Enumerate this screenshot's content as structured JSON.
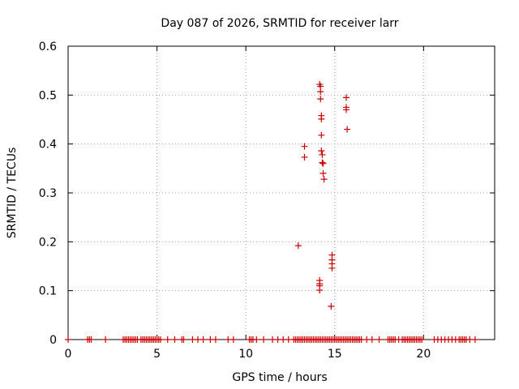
{
  "chart_data": {
    "type": "scatter",
    "title": "Day 087 of 2026, SRMTID for receiver larr",
    "xlabel": "GPS time / hours",
    "ylabel": "SRMTID / TECUs",
    "xlim": [
      0,
      24
    ],
    "ylim": [
      0,
      0.6
    ],
    "x_ticks": [
      0,
      5,
      10,
      15,
      20
    ],
    "y_ticks": [
      0,
      0.1,
      0.2,
      0.3,
      0.4,
      0.5,
      0.6
    ],
    "x_tick_labels": [
      "0",
      "5",
      "10",
      "15",
      "20"
    ],
    "y_tick_labels": [
      "0",
      "0.1",
      "0.2",
      "0.3",
      "0.4",
      "0.5",
      "0.6"
    ],
    "grid": true,
    "marker": "+",
    "marker_color": "#cc0000",
    "series": [
      {
        "name": "larr",
        "points": [
          [
            0.0,
            0.0
          ],
          [
            1.1,
            0.0
          ],
          [
            1.2,
            0.0
          ],
          [
            1.3,
            0.0
          ],
          [
            2.1,
            0.0
          ],
          [
            3.1,
            0.0
          ],
          [
            3.2,
            0.0
          ],
          [
            3.3,
            0.0
          ],
          [
            3.4,
            0.0
          ],
          [
            3.5,
            0.0
          ],
          [
            3.6,
            0.0
          ],
          [
            3.7,
            0.0
          ],
          [
            3.8,
            0.0
          ],
          [
            3.9,
            0.0
          ],
          [
            4.1,
            0.0
          ],
          [
            4.2,
            0.0
          ],
          [
            4.3,
            0.0
          ],
          [
            4.4,
            0.0
          ],
          [
            4.5,
            0.0
          ],
          [
            4.6,
            0.0
          ],
          [
            4.7,
            0.0
          ],
          [
            4.8,
            0.0
          ],
          [
            4.9,
            0.0
          ],
          [
            5.0,
            0.0
          ],
          [
            5.1,
            0.0
          ],
          [
            5.2,
            0.0
          ],
          [
            5.6,
            0.0
          ],
          [
            6.0,
            0.0
          ],
          [
            6.4,
            0.0
          ],
          [
            6.5,
            0.0
          ],
          [
            7.0,
            0.0
          ],
          [
            7.3,
            0.0
          ],
          [
            7.6,
            0.0
          ],
          [
            8.0,
            0.0
          ],
          [
            8.3,
            0.0
          ],
          [
            9.0,
            0.0
          ],
          [
            9.3,
            0.0
          ],
          [
            10.2,
            0.0
          ],
          [
            10.3,
            0.0
          ],
          [
            10.4,
            0.0
          ],
          [
            10.6,
            0.0
          ],
          [
            11.0,
            0.0
          ],
          [
            11.5,
            0.0
          ],
          [
            11.8,
            0.0
          ],
          [
            12.1,
            0.0
          ],
          [
            12.4,
            0.0
          ],
          [
            12.7,
            0.0
          ],
          [
            12.8,
            0.0
          ],
          [
            12.9,
            0.0
          ],
          [
            13.0,
            0.0
          ],
          [
            13.1,
            0.0
          ],
          [
            13.2,
            0.0
          ],
          [
            13.3,
            0.0
          ],
          [
            13.4,
            0.0
          ],
          [
            13.5,
            0.0
          ],
          [
            13.6,
            0.0
          ],
          [
            13.7,
            0.0
          ],
          [
            13.8,
            0.0
          ],
          [
            13.9,
            0.0
          ],
          [
            14.0,
            0.0
          ],
          [
            14.1,
            0.0
          ],
          [
            14.2,
            0.0
          ],
          [
            14.3,
            0.0
          ],
          [
            14.4,
            0.0
          ],
          [
            14.5,
            0.0
          ],
          [
            14.6,
            0.0
          ],
          [
            14.7,
            0.0
          ],
          [
            14.8,
            0.0
          ],
          [
            14.9,
            0.0
          ],
          [
            15.0,
            0.0
          ],
          [
            15.1,
            0.0
          ],
          [
            15.2,
            0.0
          ],
          [
            15.3,
            0.0
          ],
          [
            15.4,
            0.0
          ],
          [
            15.5,
            0.0
          ],
          [
            15.6,
            0.0
          ],
          [
            15.7,
            0.0
          ],
          [
            15.8,
            0.0
          ],
          [
            15.9,
            0.0
          ],
          [
            16.0,
            0.0
          ],
          [
            16.1,
            0.0
          ],
          [
            16.2,
            0.0
          ],
          [
            16.3,
            0.0
          ],
          [
            16.4,
            0.0
          ],
          [
            16.5,
            0.0
          ],
          [
            16.8,
            0.0
          ],
          [
            17.1,
            0.0
          ],
          [
            17.5,
            0.0
          ],
          [
            18.0,
            0.0
          ],
          [
            18.1,
            0.0
          ],
          [
            18.2,
            0.0
          ],
          [
            18.3,
            0.0
          ],
          [
            18.4,
            0.0
          ],
          [
            18.6,
            0.0
          ],
          [
            18.8,
            0.0
          ],
          [
            18.9,
            0.0
          ],
          [
            19.0,
            0.0
          ],
          [
            19.1,
            0.0
          ],
          [
            19.2,
            0.0
          ],
          [
            19.3,
            0.0
          ],
          [
            19.4,
            0.0
          ],
          [
            19.5,
            0.0
          ],
          [
            19.6,
            0.0
          ],
          [
            19.7,
            0.0
          ],
          [
            19.8,
            0.0
          ],
          [
            19.9,
            0.0
          ],
          [
            20.6,
            0.0
          ],
          [
            20.8,
            0.0
          ],
          [
            21.0,
            0.0
          ],
          [
            21.2,
            0.0
          ],
          [
            21.4,
            0.0
          ],
          [
            21.6,
            0.0
          ],
          [
            21.8,
            0.0
          ],
          [
            22.0,
            0.0
          ],
          [
            22.1,
            0.0
          ],
          [
            22.2,
            0.0
          ],
          [
            22.3,
            0.0
          ],
          [
            22.4,
            0.0
          ],
          [
            22.6,
            0.0
          ],
          [
            22.9,
            0.0
          ],
          [
            12.95,
            0.192
          ],
          [
            13.3,
            0.395
          ],
          [
            13.3,
            0.373
          ],
          [
            14.15,
            0.522
          ],
          [
            14.2,
            0.518
          ],
          [
            14.2,
            0.507
          ],
          [
            14.2,
            0.492
          ],
          [
            14.25,
            0.458
          ],
          [
            14.25,
            0.451
          ],
          [
            14.25,
            0.418
          ],
          [
            14.25,
            0.386
          ],
          [
            14.3,
            0.378
          ],
          [
            14.3,
            0.362
          ],
          [
            14.35,
            0.36
          ],
          [
            14.35,
            0.34
          ],
          [
            14.4,
            0.328
          ],
          [
            14.15,
            0.121
          ],
          [
            14.15,
            0.114
          ],
          [
            14.15,
            0.11
          ],
          [
            14.15,
            0.101
          ],
          [
            14.85,
            0.173
          ],
          [
            14.85,
            0.163
          ],
          [
            14.85,
            0.155
          ],
          [
            14.85,
            0.146
          ],
          [
            14.8,
            0.068
          ],
          [
            15.65,
            0.495
          ],
          [
            15.65,
            0.475
          ],
          [
            15.65,
            0.47
          ],
          [
            15.7,
            0.43
          ]
        ]
      }
    ]
  }
}
